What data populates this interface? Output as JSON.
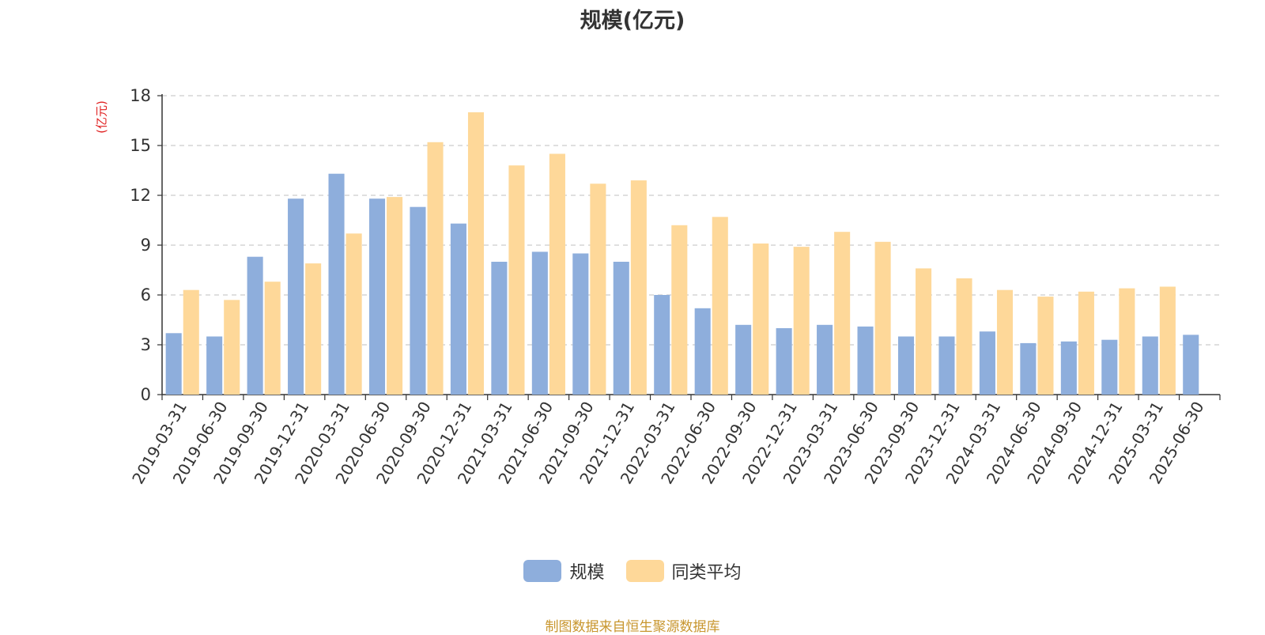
{
  "colors": {
    "series1": "#8eaedc",
    "series2": "#fed899",
    "axis_unit": "#e02020",
    "source": "#c8962e",
    "grid": "#cccccc"
  },
  "footer": {
    "source": "制图数据来自恒生聚源数据库"
  },
  "chart_data": {
    "type": "bar",
    "title": "规模(亿元)",
    "ylabel": "(亿元)",
    "ylim": [
      0,
      18
    ],
    "yticks": [
      0,
      3,
      6,
      9,
      12,
      15,
      18
    ],
    "grid": true,
    "legend_position": "bottom-center",
    "categories": [
      "2019-03-31",
      "2019-06-30",
      "2019-09-30",
      "2019-12-31",
      "2020-03-31",
      "2020-06-30",
      "2020-09-30",
      "2020-12-31",
      "2021-03-31",
      "2021-06-30",
      "2021-09-30",
      "2021-12-31",
      "2022-03-31",
      "2022-06-30",
      "2022-09-30",
      "2022-12-31",
      "2023-03-31",
      "2023-06-30",
      "2023-09-30",
      "2023-12-31",
      "2024-03-31",
      "2024-06-30",
      "2024-09-30",
      "2024-12-31",
      "2025-03-31",
      "2025-06-30"
    ],
    "series": [
      {
        "name": "规模",
        "values": [
          3.7,
          3.5,
          8.3,
          11.8,
          13.3,
          11.8,
          11.3,
          10.3,
          8.0,
          8.6,
          8.5,
          8.0,
          6.0,
          5.2,
          4.2,
          4.0,
          4.2,
          4.1,
          3.5,
          3.5,
          3.8,
          3.1,
          3.2,
          3.3,
          3.5,
          3.6
        ]
      },
      {
        "name": "同类平均",
        "values": [
          6.3,
          5.7,
          6.8,
          7.9,
          9.7,
          11.9,
          15.2,
          17.0,
          13.8,
          14.5,
          12.7,
          12.9,
          10.2,
          10.7,
          9.1,
          8.9,
          9.8,
          9.2,
          7.6,
          7.0,
          6.3,
          5.9,
          6.2,
          6.4,
          6.5,
          null
        ]
      }
    ]
  }
}
